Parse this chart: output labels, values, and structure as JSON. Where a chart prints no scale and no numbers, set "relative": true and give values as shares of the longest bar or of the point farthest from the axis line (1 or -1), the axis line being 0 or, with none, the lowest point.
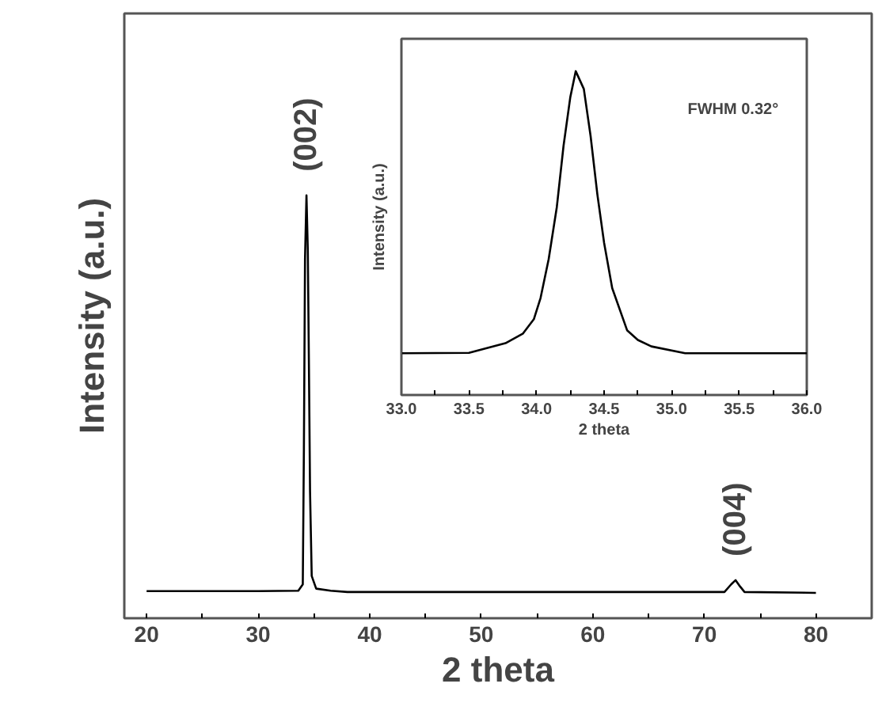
{
  "chart_data": [
    {
      "type": "line",
      "xlabel": "2 theta",
      "ylabel": "Intensity (a.u.)",
      "relative": true,
      "xlim": [
        18,
        85
      ],
      "xticks": [
        20,
        {
          "value": 25,
          "label": null
        },
        30,
        {
          "value": 35,
          "label": null
        },
        40,
        {
          "value": 45,
          "label": null
        },
        50,
        {
          "value": 55,
          "label": null
        },
        60,
        {
          "value": 65,
          "label": null
        },
        70,
        {
          "value": 75,
          "label": null
        },
        80
      ],
      "series": [
        {
          "color": "#000000",
          "x": [
            20,
            30,
            33.6,
            34.0,
            34.1,
            34.2,
            34.33,
            34.45,
            34.55,
            34.65,
            34.8,
            35.2,
            36.5,
            38,
            50,
            63,
            71.8,
            72.4,
            72.8,
            73.2,
            73.6,
            80
          ],
          "values": [
            0.064,
            0.064,
            0.065,
            0.08,
            0.4,
            0.85,
            1.0,
            0.87,
            0.6,
            0.3,
            0.1,
            0.07,
            0.065,
            0.062,
            0.062,
            0.062,
            0.062,
            0.08,
            0.09,
            0.075,
            0.062,
            0.06
          ]
        }
      ],
      "annotations": [
        {
          "text": "(002)",
          "x": 34.33,
          "y": 1.0
        },
        {
          "text": "(004)",
          "x": 72.8,
          "y": 0.09
        }
      ]
    },
    {
      "type": "line",
      "xlabel": "2 theta",
      "ylabel": "Intensity (a.u.)",
      "relative": true,
      "xlim": [
        33,
        36
      ],
      "xticks": [
        {
          "value": 33,
          "label": "33.0"
        },
        {
          "value": 33.25,
          "label": null
        },
        {
          "value": 33.5,
          "label": "33.5"
        },
        {
          "value": 33.75,
          "label": null
        },
        {
          "value": 34,
          "label": "34.0"
        },
        {
          "value": 34.25,
          "label": null
        },
        {
          "value": 34.5,
          "label": "34.5"
        },
        {
          "value": 34.75,
          "label": null
        },
        {
          "value": 35,
          "label": "35.0"
        },
        {
          "value": 35.25,
          "label": null
        },
        {
          "value": 35.5,
          "label": "35.5"
        },
        {
          "value": 35.75,
          "label": null
        },
        {
          "value": 36,
          "label": "36.0"
        }
      ],
      "series": [
        {
          "color": "#000000",
          "x": [
            33.0,
            33.5,
            33.77,
            33.9,
            33.98,
            34.03,
            34.09,
            34.15,
            34.2,
            34.25,
            34.29,
            34.35,
            34.4,
            34.45,
            34.5,
            34.56,
            34.67,
            34.75,
            34.85,
            35.1,
            36.0
          ],
          "values": [
            0.129,
            0.13,
            0.16,
            0.19,
            0.234,
            0.3,
            0.42,
            0.58,
            0.77,
            0.92,
            1.0,
            0.945,
            0.8,
            0.62,
            0.47,
            0.33,
            0.2,
            0.17,
            0.15,
            0.129,
            0.129
          ]
        }
      ],
      "annotations": [
        "FWHM 0.32°"
      ]
    }
  ]
}
